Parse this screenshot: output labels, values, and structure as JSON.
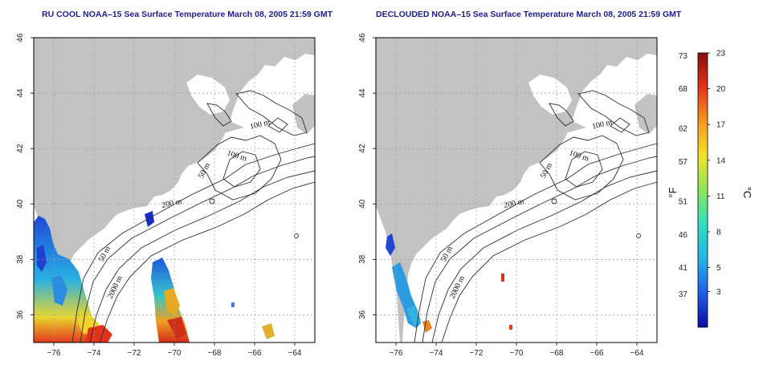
{
  "panels": [
    {
      "title": "RU COOL NOAA–15 Sea Surface Temperature March 08, 2005 21:59 GMT",
      "contour_labels": [
        "100 m",
        "100 m",
        "50 m",
        "200 m",
        "50 m",
        "2000 m"
      ]
    },
    {
      "title": "DECLOUDED NOAA–15 Sea Surface Temperature March 08, 2005 21:59 GMT",
      "contour_labels": [
        "100 m",
        "100 m",
        "50 m",
        "200 m",
        "50 m",
        "2000 m"
      ]
    }
  ],
  "axes": {
    "lon_ticks": [
      "−76",
      "−74",
      "−72",
      "−70",
      "−68",
      "−66",
      "−64"
    ],
    "lat_ticks": [
      "36",
      "38",
      "40",
      "42",
      "44",
      "46"
    ],
    "lon_values": [
      -76,
      -74,
      -72,
      -70,
      -68,
      -66,
      -64
    ],
    "lat_values": [
      36,
      38,
      40,
      42,
      44,
      46
    ],
    "lon_range": [
      -77,
      -63
    ],
    "lat_range": [
      35,
      46
    ]
  },
  "colorbar": {
    "fahrenheit_label": "°F",
    "celsius_label": "°C",
    "fahrenheit_ticks": [
      "73",
      "68",
      "62",
      "57",
      "51",
      "46",
      "41",
      "37"
    ],
    "celsius_ticks": [
      "23",
      "20",
      "17",
      "14",
      "11",
      "8",
      "5",
      "3"
    ],
    "fahrenheit_values": [
      73,
      68,
      62,
      57,
      51,
      46,
      41,
      37
    ],
    "celsius_values": [
      23,
      20,
      17,
      14,
      11,
      8,
      5,
      3
    ],
    "celsius_range": [
      0,
      23
    ],
    "colors": [
      "#0c0ca8",
      "#1f5fe8",
      "#22b5e8",
      "#2fe0c0",
      "#8de65a",
      "#f2e227",
      "#f59a1e",
      "#e4321a",
      "#8a0d0d"
    ]
  },
  "colors": {
    "land": "#c2c2c2",
    "water": "#ffffff",
    "grid": "#9a9a9a",
    "title": "#1d1d8a"
  }
}
